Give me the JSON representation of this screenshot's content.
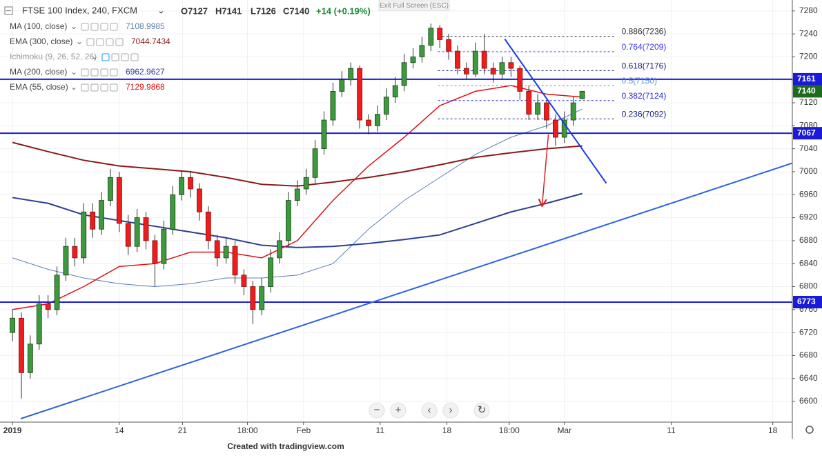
{
  "chart_data": {
    "type": "candlestick",
    "title": "FTSE 100 Index, 240, FXCM",
    "header_quote": [
      "O7127",
      "H7141",
      "L7126",
      "C7140"
    ],
    "header_change": "+14 (+0.19%)",
    "x": [
      0,
      1,
      2,
      3,
      4,
      5,
      6,
      7,
      8,
      9,
      10,
      11,
      12,
      13,
      14,
      15,
      16,
      17,
      18,
      19,
      20,
      21,
      22,
      23,
      24,
      25,
      26,
      27,
      28,
      29,
      30,
      31,
      32,
      33,
      34,
      35,
      36,
      37,
      38,
      39,
      40,
      41,
      42,
      43,
      44,
      45,
      46,
      47,
      48,
      49,
      50,
      51,
      52,
      53,
      54,
      55,
      56,
      57,
      58,
      59,
      60,
      61,
      62,
      63,
      64
    ],
    "open": [
      6720,
      6745,
      6650,
      6700,
      6770,
      6760,
      6820,
      6870,
      6850,
      6930,
      6900,
      6950,
      6990,
      6910,
      6870,
      6920,
      6880,
      6840,
      6900,
      6960,
      6990,
      6970,
      6930,
      6880,
      6850,
      6870,
      6820,
      6800,
      6760,
      6800,
      6850,
      6880,
      6950,
      6970,
      6990,
      7040,
      7090,
      7140,
      7160,
      7180,
      7090,
      7080,
      7100,
      7130,
      7150,
      7190,
      7200,
      7220,
      7250,
      7230,
      7210,
      7180,
      7170,
      7210,
      7180,
      7170,
      7190,
      7180,
      7140,
      7100,
      7120,
      7090,
      7060,
      7090,
      7127
    ],
    "high": [
      6760,
      6755,
      6715,
      6785,
      6785,
      6835,
      6885,
      6885,
      6945,
      6945,
      6965,
      7005,
      7000,
      6925,
      6935,
      6930,
      6890,
      6915,
      6975,
      7000,
      7000,
      6980,
      6940,
      6890,
      6885,
      6880,
      6830,
      6810,
      6815,
      6865,
      6895,
      6965,
      6985,
      7005,
      7055,
      7105,
      7155,
      7175,
      7190,
      7185,
      7100,
      7115,
      7145,
      7165,
      7205,
      7215,
      7235,
      7258,
      7255,
      7240,
      7220,
      7190,
      7225,
      7240,
      7190,
      7200,
      7200,
      7185,
      7150,
      7135,
      7125,
      7100,
      7105,
      7130,
      7141
    ],
    "low": [
      6705,
      6605,
      6640,
      6690,
      6745,
      6750,
      6810,
      6835,
      6840,
      6885,
      6890,
      6940,
      6895,
      6855,
      6860,
      6865,
      6800,
      6830,
      6890,
      6950,
      6955,
      6915,
      6865,
      6835,
      6840,
      6805,
      6785,
      6735,
      6750,
      6790,
      6840,
      6870,
      6940,
      6960,
      6980,
      7030,
      7080,
      7130,
      7150,
      7075,
      7065,
      7070,
      7090,
      7120,
      7140,
      7180,
      7190,
      7210,
      7215,
      7195,
      7170,
      7160,
      7165,
      7170,
      7155,
      7160,
      7165,
      7125,
      7090,
      7090,
      7075,
      7045,
      7050,
      7080,
      7126
    ],
    "close": [
      6745,
      6650,
      6700,
      6770,
      6760,
      6820,
      6870,
      6850,
      6930,
      6900,
      6950,
      6990,
      6910,
      6870,
      6920,
      6880,
      6840,
      6900,
      6960,
      6990,
      6970,
      6930,
      6880,
      6850,
      6870,
      6820,
      6800,
      6760,
      6800,
      6850,
      6880,
      6950,
      6970,
      6990,
      7040,
      7090,
      7140,
      7160,
      7180,
      7090,
      7080,
      7100,
      7130,
      7150,
      7190,
      7200,
      7220,
      7250,
      7230,
      7210,
      7180,
      7170,
      7210,
      7180,
      7170,
      7190,
      7180,
      7140,
      7100,
      7120,
      7090,
      7060,
      7090,
      7120,
      7140
    ],
    "up_color": "#3c9a3c",
    "down_color": "#f01c1c",
    "xlim": [
      -1.4,
      87.6
    ],
    "ylim": [
      6564,
      7299
    ],
    "xticks": [
      {
        "value": 0,
        "label": "2019"
      },
      {
        "value": 12,
        "label": "14"
      },
      {
        "value": 19.1,
        "label": "21"
      },
      {
        "value": 26.4,
        "label": "18:00"
      },
      {
        "value": 32.7,
        "label": "Feb"
      },
      {
        "value": 41.3,
        "label": "11"
      },
      {
        "value": 48.8,
        "label": "18"
      },
      {
        "value": 55.8,
        "label": "18:00"
      },
      {
        "value": 62,
        "label": "Mar"
      },
      {
        "value": 74,
        "label": "11"
      },
      {
        "value": 85.4,
        "label": "18"
      }
    ],
    "yticks": [
      6600,
      6640,
      6680,
      6720,
      6760,
      6800,
      6840,
      6880,
      6920,
      6960,
      7000,
      7040,
      7080,
      7120,
      7160,
      7200,
      7240,
      7280
    ],
    "grid": true,
    "indicators": [
      {
        "name": "MA (100, close)",
        "value_text": "7108.9985",
        "color": "#5b7fb5",
        "x": [
          0,
          4,
          8,
          12,
          16,
          20,
          24,
          28,
          32,
          36,
          40,
          44,
          48,
          52,
          56,
          60,
          64
        ],
        "values": [
          6850,
          6830,
          6815,
          6805,
          6800,
          6805,
          6815,
          6815,
          6820,
          6840,
          6900,
          6950,
          6990,
          7030,
          7060,
          7080,
          7109
        ]
      },
      {
        "name": "EMA (300, close)",
        "value_text": "7044.7434",
        "color": "#8b1a1a",
        "x": [
          0,
          4,
          8,
          12,
          16,
          20,
          24,
          28,
          32,
          36,
          40,
          44,
          48,
          52,
          56,
          60,
          64
        ],
        "values": [
          7051,
          7035,
          7020,
          7010,
          7005,
          7000,
          6990,
          6978,
          6975,
          6982,
          6990,
          7000,
          7012,
          7025,
          7033,
          7040,
          7045
        ]
      },
      {
        "name": "Ichimoku (9, 26, 52, 26)",
        "color": "#9e9e9e"
      },
      {
        "name": "MA (200, close)",
        "value_text": "6962.9627",
        "color": "#2a3f8f",
        "x": [
          0,
          4,
          8,
          12,
          16,
          20,
          24,
          28,
          32,
          36,
          40,
          44,
          48,
          52,
          56,
          60,
          64
        ],
        "values": [
          6955,
          6945,
          6925,
          6915,
          6905,
          6895,
          6885,
          6872,
          6868,
          6870,
          6875,
          6882,
          6890,
          6910,
          6930,
          6945,
          6962
        ]
      },
      {
        "name": "EMA (55, close)",
        "value_text": "7129.9868",
        "color": "#e01010",
        "x": [
          0,
          4,
          8,
          12,
          16,
          20,
          24,
          28,
          32,
          36,
          40,
          44,
          48,
          52,
          56,
          60,
          64
        ],
        "values": [
          6760,
          6770,
          6800,
          6835,
          6840,
          6860,
          6860,
          6850,
          6880,
          6950,
          7010,
          7060,
          7115,
          7140,
          7150,
          7135,
          7130
        ]
      }
    ],
    "levels": [
      {
        "value": 7161,
        "label": "7161",
        "color": "#1a1ad8"
      },
      {
        "value": 7067,
        "label": "7067",
        "color": "#1a1ad8"
      },
      {
        "value": 6773,
        "label": "6773",
        "color": "#1a1ad8"
      }
    ],
    "last_price": {
      "value": 7140,
      "label": "7140",
      "color": "#1e6b1e"
    },
    "fibonacci": {
      "x_range": [
        47.8,
        67.8
      ],
      "levels": [
        {
          "value": 7236,
          "label": "0.886(7236)",
          "color": "#333333"
        },
        {
          "value": 7209,
          "label": "0.764(7209)",
          "color": "#3a3ae0"
        },
        {
          "value": 7176,
          "label": "0.618(7176)",
          "color": "#1a237e"
        },
        {
          "value": 7150,
          "label": "0.5(7150)",
          "color": "#5c8de0"
        },
        {
          "value": 7124,
          "label": "0.382(7124)",
          "color": "#2a2ad8"
        },
        {
          "value": 7092,
          "label": "0.236(7092)",
          "color": "#1a237e"
        }
      ]
    },
    "drawings": [
      {
        "type": "trendline",
        "color": "#2d62e6",
        "x": [
          0.93,
          87.6
        ],
        "values": [
          6570,
          7015
        ]
      },
      {
        "type": "trendline",
        "color": "#1a3ae8",
        "x": [
          55.3,
          66.7
        ],
        "values": [
          7231,
          6980
        ]
      },
      {
        "type": "arrow",
        "color": "#e02020",
        "x": [
          60.2,
          59.5
        ],
        "values": [
          7065,
          6942
        ]
      }
    ]
  },
  "ui": {
    "exit_button": "Exit Full Screen (ESC)",
    "buttons": [
      "−",
      "+",
      "‹",
      "›",
      "↻"
    ],
    "footer": "Created with tradingview.com"
  }
}
